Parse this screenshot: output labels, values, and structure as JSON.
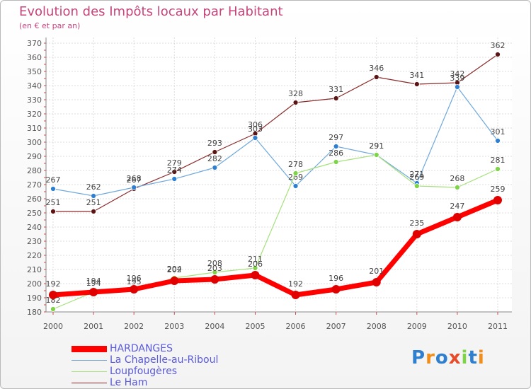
{
  "header": {
    "title": "Evolution des Impôts locaux par Habitant",
    "subtitle": "(en € et par an)"
  },
  "colors": {
    "title": "#c5457b",
    "axis": "#555555",
    "grid": "#dddddd",
    "legend_text": "#5a5adc"
  },
  "chart_data": {
    "type": "line",
    "title": "Evolution des Impôts locaux par Habitant",
    "subtitle": "(en € et par an)",
    "xlabel": "",
    "ylabel": "",
    "x": [
      "2000",
      "2001",
      "2002",
      "2003",
      "2004",
      "2005",
      "2006",
      "2007",
      "2008",
      "2009",
      "2010",
      "2011"
    ],
    "ylim": [
      180,
      370
    ],
    "yticks": [
      180,
      190,
      200,
      210,
      220,
      230,
      240,
      250,
      260,
      270,
      280,
      290,
      300,
      310,
      320,
      330,
      340,
      350,
      360,
      370
    ],
    "grid": true,
    "legend_position": "bottom-left",
    "series": [
      {
        "name": "Le Ham",
        "color": "#8b2a2a",
        "marker": "#5a1414",
        "values": [
          251,
          251,
          267,
          279,
          293,
          306,
          328,
          331,
          346,
          341,
          342,
          362
        ],
        "labels": [
          "251",
          "251",
          "267",
          "279",
          "293",
          "306",
          "328",
          "331",
          "346",
          "341",
          "342",
          "362"
        ]
      },
      {
        "name": "La Chapelle-au-Riboul",
        "color": "#6fa8dc",
        "marker": "#2e7fd0",
        "values": [
          267,
          262,
          268,
          274,
          282,
          303,
          269,
          297,
          291,
          271,
          339,
          301
        ],
        "labels": [
          "267",
          "262",
          "268",
          "274",
          "282",
          "303",
          "269",
          "297",
          "291",
          "271",
          "339",
          "301"
        ]
      },
      {
        "name": "Loupfougères",
        "color": "#a6e07c",
        "marker": "#7ed348",
        "values": [
          182,
          194,
          195,
          204,
          208,
          211,
          278,
          286,
          291,
          269,
          268,
          281
        ],
        "labels": [
          "182",
          "194",
          "195",
          "204",
          "208",
          "211",
          "278",
          "286",
          "291",
          "269",
          "268",
          "281"
        ]
      },
      {
        "name": "HARDANGES",
        "color": "#ff0000",
        "marker": "#e00000",
        "values": [
          192,
          194,
          196,
          202,
          203,
          206,
          192,
          196,
          201,
          235,
          247,
          259
        ],
        "labels": [
          "192",
          "194",
          "196",
          "202",
          "203",
          "206",
          "192",
          "196",
          "201",
          "235",
          "247",
          "259"
        ]
      }
    ]
  },
  "legend": {
    "items": [
      {
        "label": "HARDANGES",
        "color": "#ff0000"
      },
      {
        "label": "La Chapelle-au-Riboul",
        "color": "#6fa8dc"
      },
      {
        "label": "Loupfougères",
        "color": "#a6e07c"
      },
      {
        "label": "Le Ham",
        "color": "#8b2a2a"
      }
    ]
  },
  "logo": {
    "letters": [
      "P",
      "r",
      "o",
      "x",
      "i",
      "t",
      "i"
    ],
    "colors": [
      "#2e7fd0",
      "#f28c1a",
      "#2e7fd0",
      "#e84b2a",
      "#7ed348",
      "#2e7fd0",
      "#f28c1a"
    ]
  }
}
